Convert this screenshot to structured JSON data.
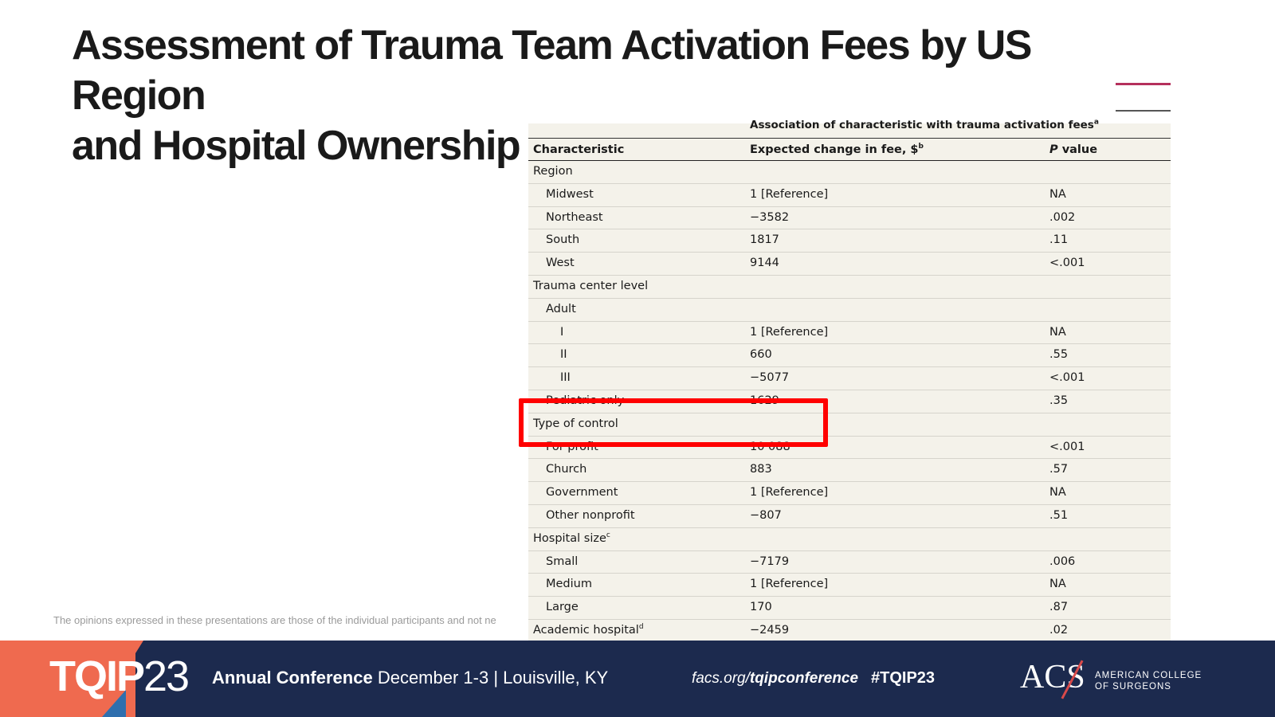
{
  "title_line1": "Assessment of Trauma Team Activation Fees by US Region",
  "title_line2": "and Hospital Ownership",
  "table": {
    "group_header": "Association of characteristic with trauma activation fees",
    "group_header_sup": "a",
    "col1": "Characteristic",
    "col2": "Expected change in fee, $",
    "col2_sup": "b",
    "col3_italic": "P",
    "col3": " value",
    "rows": [
      {
        "label": "Region",
        "fee": "",
        "p": ""
      },
      {
        "label": "Midwest",
        "fee": "1 [Reference]",
        "p": "NA"
      },
      {
        "label": "Northeast",
        "fee": "−3582",
        "p": ".002"
      },
      {
        "label": "South",
        "fee": "1817",
        "p": ".11"
      },
      {
        "label": "West",
        "fee": "9144",
        "p": "<.001"
      },
      {
        "label": "Trauma center level",
        "fee": "",
        "p": ""
      },
      {
        "label": "Adult",
        "fee": "",
        "p": ""
      },
      {
        "label": "I",
        "fee": "1 [Reference]",
        "p": "NA"
      },
      {
        "label": "II",
        "fee": "660",
        "p": ".55"
      },
      {
        "label": "III",
        "fee": "−5077",
        "p": "<.001"
      },
      {
        "label": "Pediatric only",
        "fee": "1629",
        "p": ".35"
      },
      {
        "label": "Type of control",
        "fee": "",
        "p": ""
      },
      {
        "label": "For profit",
        "fee": "10 088",
        "p": "<.001"
      },
      {
        "label": "Church",
        "fee": "883",
        "p": ".57"
      },
      {
        "label": "Government",
        "fee": "1 [Reference]",
        "p": "NA"
      },
      {
        "label": "Other nonprofit",
        "fee": "−807",
        "p": ".51"
      },
      {
        "label": "Hospital size",
        "label_sup": "c",
        "fee": "",
        "p": ""
      },
      {
        "label": "Small",
        "fee": "−7179",
        "p": ".006"
      },
      {
        "label": "Medium",
        "fee": "1 [Reference]",
        "p": "NA"
      },
      {
        "label": "Large",
        "fee": "170",
        "p": ".87"
      },
      {
        "label": "Academic hospital",
        "label_sup": "d",
        "fee": "−2459",
        "p": ".02"
      }
    ]
  },
  "disclaimer": "The opinions expressed in these presentations are those of the individual participants and not ne",
  "footer": {
    "brand_bold": "TQIP",
    "brand_thin": "23",
    "conf_bold": "Annual Conference",
    "conf_rest": " December 1-3 | Louisville, KY",
    "url_prefix": "facs.org/",
    "url_bold": "tqipconference",
    "hashtag": "#TQIP23",
    "acs": "ACS",
    "acs_sub1": "AMERICAN COLLEGE",
    "acs_sub2": "OF SURGEONS"
  },
  "colors": {
    "highlight": "#ff0000",
    "footer_bg": "#1c2a4e",
    "footer_accent": "#ef6a4f",
    "title_rule": "#b5305c",
    "table_bg": "#f4f2ea"
  }
}
